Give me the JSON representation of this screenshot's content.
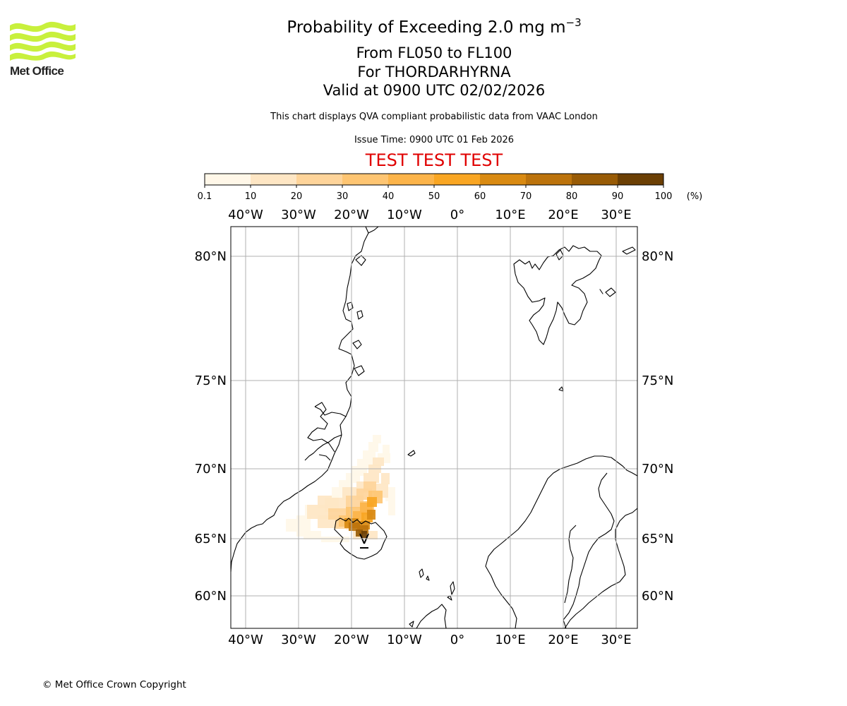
{
  "logo": {
    "text": "Met Office",
    "wave_color": "#c8f03c"
  },
  "title": {
    "main": "Probability of Exceeding 2.0 mg m",
    "main_sup": "−3",
    "line2": "From FL050 to FL100",
    "line3": "For THORDARHYRNA",
    "line4": "Valid at 0900 UTC 02/02/2026"
  },
  "description": "This chart displays QVA compliant probabilistic data from VAAC London",
  "issue_time": "Issue Time: 0900 UTC 01 Feb 2026",
  "test_banner": "TEST TEST TEST",
  "test_color": "#e00000",
  "colorbar": {
    "ticks": [
      "0.1",
      "10",
      "20",
      "30",
      "40",
      "50",
      "60",
      "70",
      "80",
      "90",
      "100"
    ],
    "unit": "(%)",
    "colors": [
      "#fff7e8",
      "#fee6c4",
      "#fed49a",
      "#fec572",
      "#fcb44a",
      "#f9a623",
      "#d98a12",
      "#bc730c",
      "#985b06",
      "#6b3f04"
    ]
  },
  "map": {
    "lon_labels": [
      "40°W",
      "30°W",
      "20°W",
      "10°W",
      "0°",
      "10°E",
      "20°E",
      "30°E"
    ],
    "lat_labels": [
      "80°N",
      "75°N",
      "70°N",
      "65°N",
      "60°N"
    ],
    "source_volcano": "Thordarhyrna",
    "plume_levels_pct": {
      "core_max": 90,
      "plume_range": [
        0.1,
        90
      ]
    }
  },
  "copyright": "© Met Office Crown Copyright"
}
